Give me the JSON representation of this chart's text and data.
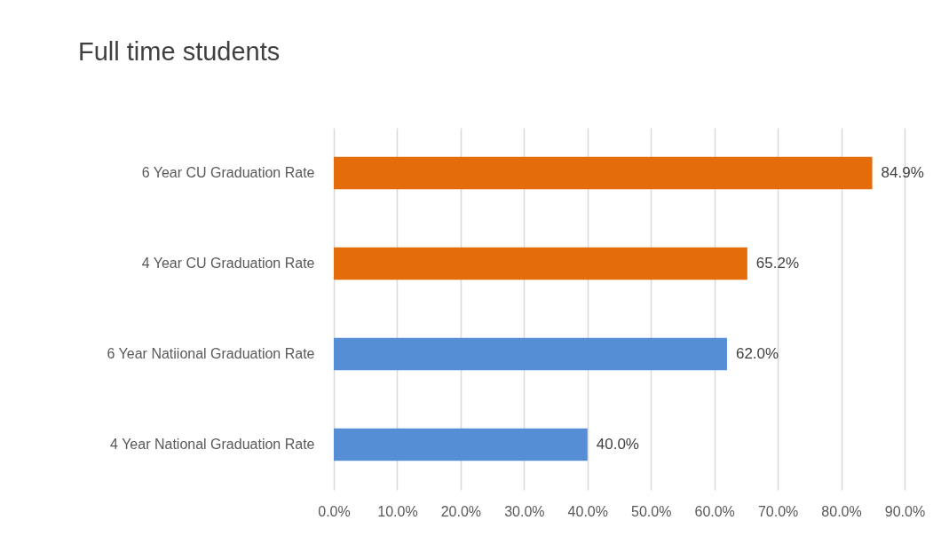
{
  "chart_data": {
    "type": "bar",
    "orientation": "horizontal",
    "title": "Full time students",
    "categories": [
      "6 Year CU Graduation Rate",
      "4 Year  CU Graduation Rate",
      "6 Year Natiional Graduation Rate",
      "4  Year National Graduation Rate"
    ],
    "values": [
      84.9,
      65.2,
      62.0,
      40.0
    ],
    "colors": [
      "#e46c0a",
      "#e46c0a",
      "#558ed5",
      "#558ed5"
    ],
    "value_labels": [
      "84.9%",
      "65.2%",
      "62.0%",
      "40.0%"
    ],
    "xlim": [
      0,
      90
    ],
    "xticks": [
      {
        "value": 0,
        "label": "0.0%"
      },
      {
        "value": 10,
        "label": "10.0%"
      },
      {
        "value": 20,
        "label": "20.0%"
      },
      {
        "value": 30,
        "label": "30.0%"
      },
      {
        "value": 40,
        "label": "40.0%"
      },
      {
        "value": 50,
        "label": "50.0%"
      },
      {
        "value": 60,
        "label": "60.0%"
      },
      {
        "value": 70,
        "label": "70.0%"
      },
      {
        "value": 80,
        "label": "80.0%"
      },
      {
        "value": 90,
        "label": "90.0%"
      }
    ],
    "grid": "x",
    "legend": false
  }
}
